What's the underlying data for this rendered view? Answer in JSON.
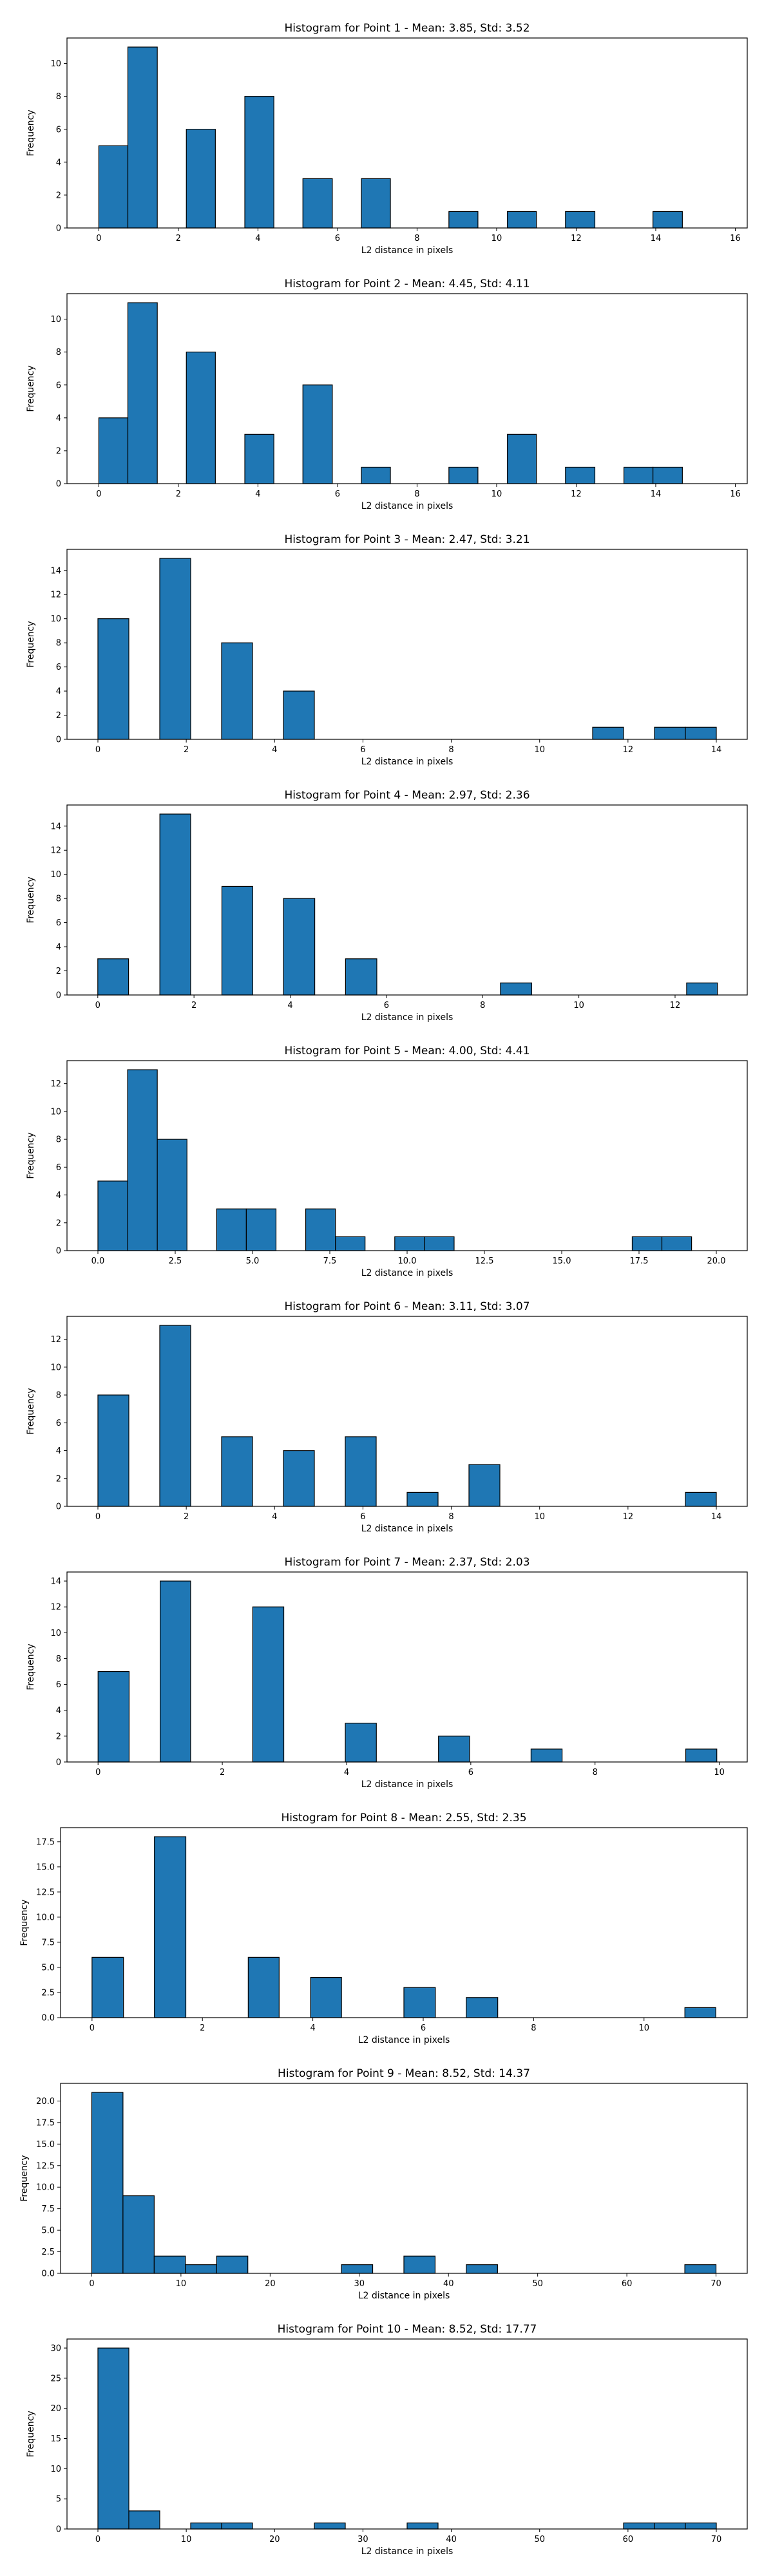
{
  "colors": {
    "bar_fill": "#1f77b4",
    "bar_edge": "#000000",
    "background": "#ffffff"
  },
  "chart_data": [
    {
      "type": "bar",
      "histogram": true,
      "title": "Histogram for Point 1 - Mean: 3.85, Std: 3.52",
      "xlabel": "L2 distance in pixels",
      "ylabel": "Frequency",
      "xlim": [
        -0.8,
        16.3
      ],
      "ylim": [
        0,
        11.55
      ],
      "xticks": [
        0,
        2,
        4,
        6,
        8,
        10,
        12,
        14,
        16
      ],
      "yticks": [
        0,
        2,
        4,
        6,
        8,
        10
      ],
      "bins": [
        [
          0,
          0.73,
          5
        ],
        [
          0.73,
          1.47,
          11
        ],
        [
          1.47,
          2.2,
          0
        ],
        [
          2.2,
          2.93,
          6
        ],
        [
          2.93,
          3.67,
          0
        ],
        [
          3.67,
          4.4,
          8
        ],
        [
          4.4,
          5.13,
          0
        ],
        [
          5.13,
          5.87,
          3
        ],
        [
          5.87,
          6.6,
          0
        ],
        [
          6.6,
          7.33,
          3
        ],
        [
          7.33,
          8.07,
          0
        ],
        [
          8.07,
          8.8,
          0
        ],
        [
          8.8,
          9.53,
          1
        ],
        [
          9.53,
          10.27,
          0
        ],
        [
          10.27,
          11.0,
          1
        ],
        [
          11.0,
          11.73,
          0
        ],
        [
          11.73,
          12.47,
          1
        ],
        [
          12.47,
          13.2,
          0
        ],
        [
          13.2,
          13.93,
          0
        ],
        [
          13.93,
          14.67,
          1
        ]
      ]
    },
    {
      "type": "bar",
      "histogram": true,
      "title": "Histogram for Point 2 - Mean: 4.45, Std: 4.11",
      "xlabel": "L2 distance in pixels",
      "ylabel": "Frequency",
      "xlim": [
        -0.8,
        16.3
      ],
      "ylim": [
        0,
        11.55
      ],
      "xticks": [
        0,
        2,
        4,
        6,
        8,
        10,
        12,
        14,
        16
      ],
      "yticks": [
        0,
        2,
        4,
        6,
        8,
        10
      ],
      "bins": [
        [
          0,
          0.73,
          4
        ],
        [
          0.73,
          1.47,
          11
        ],
        [
          1.47,
          2.2,
          0
        ],
        [
          2.2,
          2.93,
          8
        ],
        [
          2.93,
          3.67,
          0
        ],
        [
          3.67,
          4.4,
          3
        ],
        [
          4.4,
          5.13,
          0
        ],
        [
          5.13,
          5.87,
          6
        ],
        [
          5.87,
          6.6,
          0
        ],
        [
          6.6,
          7.33,
          1
        ],
        [
          7.33,
          8.07,
          0
        ],
        [
          8.07,
          8.8,
          0
        ],
        [
          8.8,
          9.53,
          1
        ],
        [
          9.53,
          10.27,
          0
        ],
        [
          10.27,
          11.0,
          3
        ],
        [
          11.0,
          11.73,
          0
        ],
        [
          11.73,
          12.47,
          1
        ],
        [
          12.47,
          13.2,
          0
        ],
        [
          13.2,
          13.93,
          1
        ],
        [
          13.93,
          14.67,
          1
        ]
      ]
    },
    {
      "type": "bar",
      "histogram": true,
      "title": "Histogram for Point 3 - Mean: 2.47, Std: 3.21",
      "xlabel": "L2 distance in pixels",
      "ylabel": "Frequency",
      "xlim": [
        -0.7,
        14.7
      ],
      "ylim": [
        0,
        15.75
      ],
      "xticks": [
        0,
        2,
        4,
        6,
        8,
        10,
        12,
        14
      ],
      "yticks": [
        0,
        2,
        4,
        6,
        8,
        10,
        12,
        14
      ],
      "bins": [
        [
          0,
          0.7,
          10
        ],
        [
          0.7,
          1.4,
          0
        ],
        [
          1.4,
          2.1,
          15
        ],
        [
          2.1,
          2.8,
          0
        ],
        [
          2.8,
          3.5,
          8
        ],
        [
          3.5,
          4.2,
          0
        ],
        [
          4.2,
          4.9,
          4
        ],
        [
          4.9,
          5.6,
          0
        ],
        [
          5.6,
          6.3,
          0
        ],
        [
          6.3,
          7.0,
          0
        ],
        [
          7.0,
          7.7,
          0
        ],
        [
          7.7,
          8.4,
          0
        ],
        [
          8.4,
          9.1,
          0
        ],
        [
          9.1,
          9.8,
          0
        ],
        [
          9.8,
          10.5,
          0
        ],
        [
          10.5,
          11.2,
          0
        ],
        [
          11.2,
          11.9,
          1
        ],
        [
          11.9,
          12.6,
          0
        ],
        [
          12.6,
          13.3,
          1
        ],
        [
          13.3,
          14.0,
          1
        ]
      ]
    },
    {
      "type": "bar",
      "histogram": true,
      "title": "Histogram for Point 4 - Mean: 2.97, Std: 2.36",
      "xlabel": "L2 distance in pixels",
      "ylabel": "Frequency",
      "xlim": [
        -0.64,
        13.5
      ],
      "ylim": [
        0,
        15.75
      ],
      "xticks": [
        0,
        2,
        4,
        6,
        8,
        10,
        12
      ],
      "yticks": [
        0,
        2,
        4,
        6,
        8,
        10,
        12,
        14
      ],
      "bins": [
        [
          0,
          0.64,
          3
        ],
        [
          0.64,
          1.29,
          0
        ],
        [
          1.29,
          1.93,
          15
        ],
        [
          1.93,
          2.58,
          0
        ],
        [
          2.58,
          3.22,
          9
        ],
        [
          3.22,
          3.86,
          0
        ],
        [
          3.86,
          4.51,
          8
        ],
        [
          4.51,
          5.15,
          0
        ],
        [
          5.15,
          5.8,
          3
        ],
        [
          5.8,
          6.44,
          0
        ],
        [
          6.44,
          7.08,
          0
        ],
        [
          7.08,
          7.73,
          0
        ],
        [
          7.73,
          8.37,
          0
        ],
        [
          8.37,
          9.02,
          1
        ],
        [
          9.02,
          9.66,
          0
        ],
        [
          9.66,
          10.3,
          0
        ],
        [
          10.3,
          10.95,
          0
        ],
        [
          10.95,
          11.59,
          0
        ],
        [
          11.59,
          12.24,
          0
        ],
        [
          12.24,
          12.88,
          1
        ]
      ]
    },
    {
      "type": "bar",
      "histogram": true,
      "title": "Histogram for Point 5 - Mean: 4.00, Std: 4.41",
      "xlabel": "L2 distance in pixels",
      "ylabel": "Frequency",
      "xlim": [
        -1.0,
        21.0
      ],
      "ylim": [
        0,
        13.65
      ],
      "xticks": [
        0.0,
        2.5,
        5.0,
        7.5,
        10.0,
        12.5,
        15.0,
        17.5,
        20.0
      ],
      "yticks": [
        0,
        2,
        4,
        6,
        8,
        10,
        12
      ],
      "bins": [
        [
          0,
          0.96,
          5
        ],
        [
          0.96,
          1.92,
          13
        ],
        [
          1.92,
          2.88,
          8
        ],
        [
          2.88,
          3.84,
          0
        ],
        [
          3.84,
          4.8,
          3
        ],
        [
          4.8,
          5.76,
          3
        ],
        [
          5.76,
          6.72,
          0
        ],
        [
          6.72,
          7.68,
          3
        ],
        [
          7.68,
          8.64,
          1
        ],
        [
          8.64,
          9.6,
          0
        ],
        [
          9.6,
          10.56,
          1
        ],
        [
          10.56,
          11.52,
          1
        ],
        [
          11.52,
          12.48,
          0
        ],
        [
          12.48,
          13.44,
          0
        ],
        [
          13.44,
          14.4,
          0
        ],
        [
          14.4,
          15.36,
          0
        ],
        [
          15.36,
          16.32,
          0
        ],
        [
          16.32,
          17.28,
          0
        ],
        [
          17.28,
          18.24,
          1
        ],
        [
          18.24,
          19.2,
          1
        ]
      ]
    },
    {
      "type": "bar",
      "histogram": true,
      "title": "Histogram for Point 6 - Mean: 3.11, Std: 3.07",
      "xlabel": "L2 distance in pixels",
      "ylabel": "Frequency",
      "xlim": [
        -0.7,
        14.7
      ],
      "ylim": [
        0,
        13.65
      ],
      "xticks": [
        0,
        2,
        4,
        6,
        8,
        10,
        12,
        14
      ],
      "yticks": [
        0,
        2,
        4,
        6,
        8,
        10,
        12
      ],
      "bins": [
        [
          0,
          0.7,
          8
        ],
        [
          0.7,
          1.4,
          0
        ],
        [
          1.4,
          2.1,
          13
        ],
        [
          2.1,
          2.8,
          0
        ],
        [
          2.8,
          3.5,
          5
        ],
        [
          3.5,
          4.2,
          0
        ],
        [
          4.2,
          4.9,
          4
        ],
        [
          4.9,
          5.6,
          0
        ],
        [
          5.6,
          6.3,
          5
        ],
        [
          6.3,
          7.0,
          0
        ],
        [
          7.0,
          7.7,
          1
        ],
        [
          7.7,
          8.4,
          0
        ],
        [
          8.4,
          9.1,
          3
        ],
        [
          9.1,
          9.8,
          0
        ],
        [
          9.8,
          10.5,
          0
        ],
        [
          10.5,
          11.2,
          0
        ],
        [
          11.2,
          11.9,
          0
        ],
        [
          11.9,
          12.6,
          0
        ],
        [
          12.6,
          13.3,
          0
        ],
        [
          13.3,
          14.0,
          1
        ]
      ]
    },
    {
      "type": "bar",
      "histogram": true,
      "title": "Histogram for Point 7 - Mean: 2.37, Std: 2.03",
      "xlabel": "L2 distance in pixels",
      "ylabel": "Frequency",
      "xlim": [
        -0.5,
        10.45
      ],
      "ylim": [
        0,
        14.7
      ],
      "xticks": [
        0,
        2,
        4,
        6,
        8,
        10
      ],
      "yticks": [
        0,
        2,
        4,
        6,
        8,
        10,
        12,
        14
      ],
      "bins": [
        [
          0,
          0.5,
          7
        ],
        [
          0.5,
          1.0,
          0
        ],
        [
          1.0,
          1.49,
          14
        ],
        [
          1.49,
          1.99,
          0
        ],
        [
          1.99,
          2.49,
          0
        ],
        [
          2.49,
          2.99,
          12
        ],
        [
          2.99,
          3.49,
          0
        ],
        [
          3.49,
          3.98,
          0
        ],
        [
          3.98,
          4.48,
          3
        ],
        [
          4.48,
          4.98,
          0
        ],
        [
          4.98,
          5.48,
          0
        ],
        [
          5.48,
          5.98,
          2
        ],
        [
          5.98,
          6.47,
          0
        ],
        [
          6.47,
          6.97,
          0
        ],
        [
          6.97,
          7.47,
          1
        ],
        [
          7.47,
          7.97,
          0
        ],
        [
          7.97,
          8.47,
          0
        ],
        [
          8.47,
          8.96,
          0
        ],
        [
          8.96,
          9.46,
          0
        ],
        [
          9.46,
          9.96,
          1
        ]
      ]
    },
    {
      "type": "bar",
      "histogram": true,
      "title": "Histogram for Point 8 - Mean: 2.55, Std: 2.35",
      "xlabel": "L2 distance in pixels",
      "ylabel": "Frequency",
      "xlim": [
        -0.57,
        11.87
      ],
      "ylim": [
        0,
        18.9
      ],
      "xticks": [
        0,
        2,
        4,
        6,
        8,
        10
      ],
      "yticks": [
        0.0,
        2.5,
        5.0,
        7.5,
        10.0,
        12.5,
        15.0,
        17.5
      ],
      "bins": [
        [
          0,
          0.57,
          6
        ],
        [
          0.57,
          1.13,
          0
        ],
        [
          1.13,
          1.7,
          18
        ],
        [
          1.7,
          2.26,
          0
        ],
        [
          2.26,
          2.83,
          0
        ],
        [
          2.83,
          3.39,
          6
        ],
        [
          3.39,
          3.96,
          0
        ],
        [
          3.96,
          4.52,
          4
        ],
        [
          4.52,
          5.09,
          0
        ],
        [
          5.09,
          5.65,
          0
        ],
        [
          5.65,
          6.22,
          3
        ],
        [
          6.22,
          6.78,
          0
        ],
        [
          6.78,
          7.35,
          2
        ],
        [
          7.35,
          7.91,
          0
        ],
        [
          7.91,
          8.48,
          0
        ],
        [
          8.48,
          9.04,
          0
        ],
        [
          9.04,
          9.61,
          0
        ],
        [
          9.61,
          10.17,
          0
        ],
        [
          10.17,
          10.74,
          0
        ],
        [
          10.74,
          11.3,
          1
        ]
      ]
    },
    {
      "type": "bar",
      "histogram": true,
      "title": "Histogram for Point 9 - Mean: 8.52, Std: 14.37",
      "xlabel": "L2 distance in pixels",
      "ylabel": "Frequency",
      "xlim": [
        -3.5,
        73.5
      ],
      "ylim": [
        0,
        22.05
      ],
      "xticks": [
        0,
        10,
        20,
        30,
        40,
        50,
        60,
        70
      ],
      "yticks": [
        0.0,
        2.5,
        5.0,
        7.5,
        10.0,
        12.5,
        15.0,
        17.5,
        20.0
      ],
      "bins": [
        [
          0,
          3.5,
          21
        ],
        [
          3.5,
          7.0,
          9
        ],
        [
          7.0,
          10.5,
          2
        ],
        [
          10.5,
          14.0,
          1
        ],
        [
          14.0,
          17.5,
          2
        ],
        [
          17.5,
          21.0,
          0
        ],
        [
          21.0,
          24.5,
          0
        ],
        [
          24.5,
          28.0,
          0
        ],
        [
          28.0,
          31.5,
          1
        ],
        [
          31.5,
          35.0,
          0
        ],
        [
          35.0,
          38.5,
          2
        ],
        [
          38.5,
          42.0,
          0
        ],
        [
          42.0,
          45.5,
          1
        ],
        [
          45.5,
          49.0,
          0
        ],
        [
          49.0,
          52.5,
          0
        ],
        [
          52.5,
          56.0,
          0
        ],
        [
          56.0,
          59.5,
          0
        ],
        [
          59.5,
          63.0,
          0
        ],
        [
          63.0,
          66.5,
          0
        ],
        [
          66.5,
          70.0,
          1
        ]
      ]
    },
    {
      "type": "bar",
      "histogram": true,
      "title": "Histogram for Point 10 - Mean: 8.52, Std: 17.77",
      "xlabel": "L2 distance in pixels",
      "ylabel": "Frequency",
      "xlim": [
        -3.5,
        73.5
      ],
      "ylim": [
        0,
        31.5
      ],
      "xticks": [
        0,
        10,
        20,
        30,
        40,
        50,
        60,
        70
      ],
      "yticks": [
        0,
        5,
        10,
        15,
        20,
        25,
        30
      ],
      "bins": [
        [
          0,
          3.5,
          30
        ],
        [
          3.5,
          7.0,
          3
        ],
        [
          7.0,
          10.5,
          0
        ],
        [
          10.5,
          14.0,
          1
        ],
        [
          14.0,
          17.5,
          1
        ],
        [
          17.5,
          21.0,
          0
        ],
        [
          21.0,
          24.5,
          0
        ],
        [
          24.5,
          28.0,
          1
        ],
        [
          28.0,
          31.5,
          0
        ],
        [
          31.5,
          35.0,
          0
        ],
        [
          35.0,
          38.5,
          1
        ],
        [
          38.5,
          42.0,
          0
        ],
        [
          42.0,
          45.5,
          0
        ],
        [
          45.5,
          49.0,
          0
        ],
        [
          49.0,
          52.5,
          0
        ],
        [
          52.5,
          56.0,
          0
        ],
        [
          56.0,
          59.5,
          0
        ],
        [
          59.5,
          63.0,
          1
        ],
        [
          63.0,
          66.5,
          1
        ],
        [
          66.5,
          70.0,
          1
        ]
      ]
    }
  ]
}
